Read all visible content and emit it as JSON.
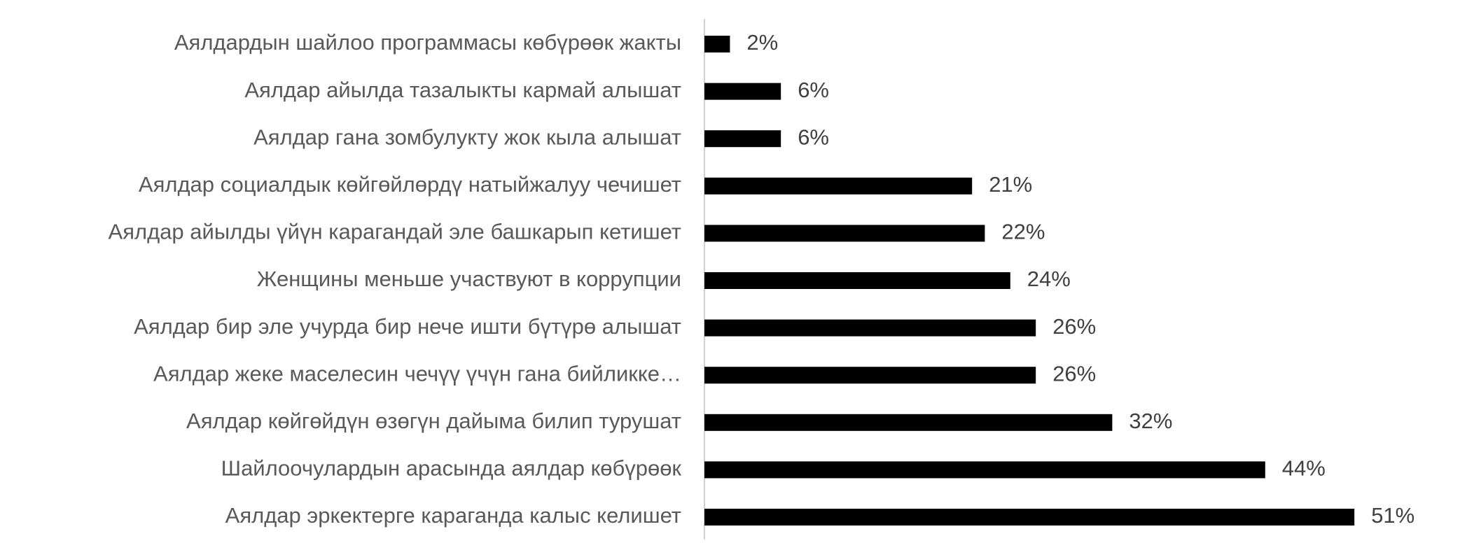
{
  "chart_data": {
    "type": "bar",
    "orientation": "horizontal",
    "color": "#000000",
    "categories": [
      "Аялдардын шайлоо программасы көбүрөөк жакты",
      "Аялдар айылда тазалыкты кармай алышат",
      "Аялдар гана зомбулукту жок кыла алышат",
      "Аялдар социалдык көйгөйлөрдү натыйжалуу чечишет",
      "Аялдар айылды үйүн карагандай эле башкарып кетишет",
      "Женщины меньше участвуют в коррупции",
      "Аялдар бир эле учурда бир нече ишти бүтүрө алышат",
      "Аялдар жеке маселесин чечүү үчүн гана бийликке…",
      "Аялдар көйгөйдүн өзөгүн дайыма билип турушат",
      "Шайлоочулардын арасында аялдар көбүрөөк",
      "Аялдар эркектерге караганда калыс келишет"
    ],
    "values": [
      2,
      6,
      6,
      21,
      22,
      24,
      26,
      26,
      32,
      44,
      51
    ],
    "value_labels": [
      "2%",
      "6%",
      "6%",
      "21%",
      "22%",
      "24%",
      "26%",
      "26%",
      "32%",
      "44%",
      "51%"
    ]
  }
}
